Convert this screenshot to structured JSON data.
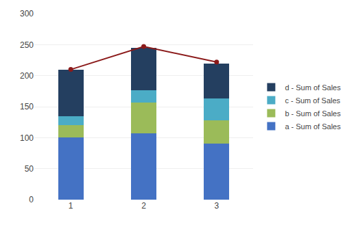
{
  "chart_data": {
    "type": "bar",
    "stacked": true,
    "categories": [
      1,
      2,
      3
    ],
    "series": [
      {
        "name": "a - Sum of Sales",
        "color": "#4472C4",
        "values": [
          100,
          107,
          90
        ]
      },
      {
        "name": "b - Sum of Sales",
        "color": "#9BBB59",
        "values": [
          20,
          50,
          38
        ]
      },
      {
        "name": "c - Sum of Sales",
        "color": "#4BACC6",
        "values": [
          15,
          20,
          35
        ]
      },
      {
        "name": "d - Sum of Sales",
        "color": "#243F60",
        "values": [
          75,
          68,
          57
        ]
      },
      {
        "type": "line",
        "color": "#8B1A1A",
        "marker": "circle",
        "values": [
          210,
          247,
          222
        ]
      }
    ],
    "ylim": [
      0,
      300
    ],
    "yticks": [
      0,
      50,
      100,
      150,
      200,
      250,
      300
    ],
    "grid": true,
    "legend": "right"
  }
}
